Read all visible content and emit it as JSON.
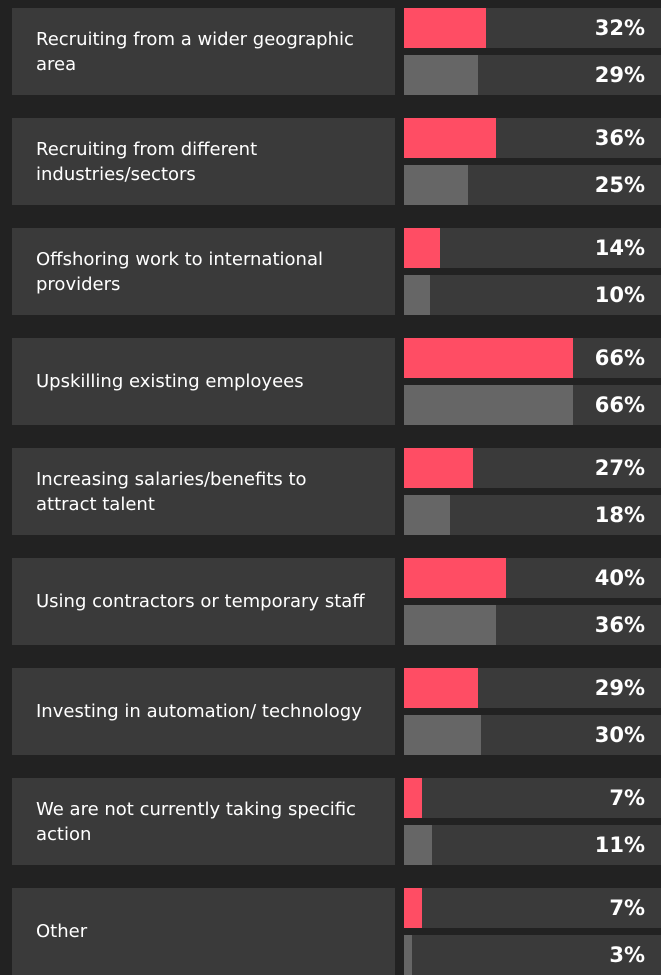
{
  "chart_data": {
    "type": "bar",
    "orientation": "horizontal",
    "categories": [
      "Recruiting from a wider geographic area",
      "Recruiting from different industries/sectors",
      "Offshoring work to international providers",
      "Upskilling existing employees",
      "Increasing salaries/benefits to attract talent",
      "Using contractors or temporary staff",
      "Investing in automation/ technology",
      "We are not currently taking specific action",
      "Other"
    ],
    "series": [
      {
        "color": "#ff4d64",
        "values": [
          32,
          36,
          14,
          66,
          27,
          40,
          29,
          7,
          7
        ],
        "value_labels": [
          "32%",
          "36%",
          "14%",
          "66%",
          "27%",
          "40%",
          "29%",
          "7%",
          "7%"
        ]
      },
      {
        "color": "#666666",
        "values": [
          29,
          25,
          10,
          66,
          18,
          36,
          30,
          11,
          3
        ],
        "value_labels": [
          "29%",
          "25%",
          "10%",
          "66%",
          "18%",
          "36%",
          "30%",
          "11%",
          "3%"
        ]
      }
    ],
    "xlim": [
      0,
      100
    ]
  }
}
